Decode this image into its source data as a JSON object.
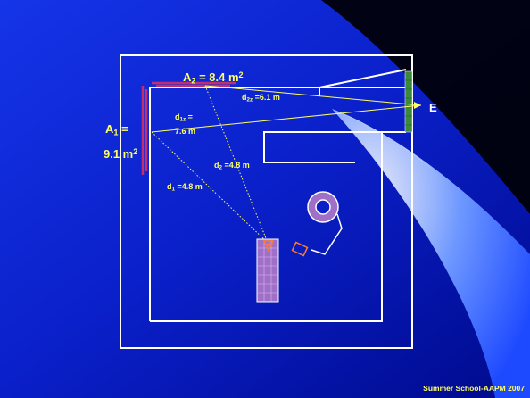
{
  "colors": {
    "background_dark": "#000a8c",
    "background_bright": "#1040ff",
    "accent_text": "#ffff66",
    "room_outline": "#ffffff",
    "barrier_area": "#b0306a",
    "ray_line": "#ffff66",
    "detector": "#3a8a3a"
  },
  "labels": {
    "A2": {
      "sym": "A",
      "sub": "2",
      "eq": " = 8.4 m",
      "exp": "2"
    },
    "A1_top": {
      "sym": "A",
      "sub": "1",
      "eq": " ="
    },
    "A1_bottom": {
      "val": "9.1 m",
      "exp": "2"
    },
    "d2z": {
      "sym": "d",
      "sub": "2z",
      "eq": " =6.1 m"
    },
    "d1z_top": {
      "sym": "d",
      "sub": "1z",
      "eq": " ="
    },
    "d1z_bottom": "7.6 m",
    "d2": {
      "sym": "d",
      "sub": "2",
      "eq": " =4.8 m"
    },
    "d1": {
      "sym": "d",
      "sub": "1",
      "eq": " =4.8 m"
    },
    "E": "E"
  },
  "icons": {
    "source": "source-marker-icon",
    "gantry": "gantry-ring-icon",
    "couch": "treatment-couch-icon",
    "detector": "door-detector-icon"
  },
  "footer": "Summer School-AAPM 2007"
}
